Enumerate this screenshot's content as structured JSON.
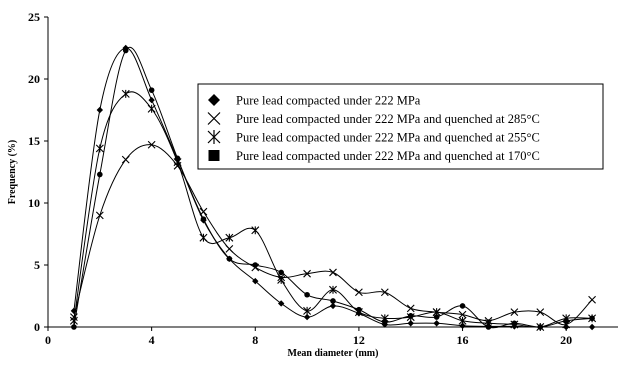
{
  "chart_data": {
    "type": "line",
    "title": "",
    "xlabel": "Mean diameter (mm)",
    "ylabel": "Frequency (%)",
    "xlim": [
      0,
      22
    ],
    "ylim": [
      0,
      25
    ],
    "xticks": [
      0,
      4,
      8,
      12,
      16,
      20
    ],
    "yticks": [
      0,
      5,
      10,
      15,
      20,
      25
    ],
    "grid": false,
    "legend_position": "right",
    "line_color": "#000000",
    "series": [
      {
        "name": "Pure lead compacted under 222 MPa",
        "marker": "diamond",
        "x": [
          1,
          2,
          3,
          4,
          5,
          6,
          7,
          8,
          9,
          10,
          11,
          12,
          13,
          14,
          15,
          16,
          17,
          18,
          19,
          20,
          21
        ],
        "y": [
          1.3,
          17.5,
          22.5,
          18.3,
          13.5,
          8.6,
          5.5,
          3.7,
          1.9,
          0.8,
          1.7,
          1.1,
          0.2,
          0.3,
          0.3,
          0.1,
          0.05,
          0.05,
          0.0,
          0.0,
          0.0
        ]
      },
      {
        "name": "Pure lead compacted under 222 MPa and quenched at 285°C",
        "marker": "x",
        "x": [
          1,
          2,
          3,
          4,
          5,
          6,
          7,
          8,
          9,
          10,
          11,
          12,
          13,
          14,
          15,
          16,
          17,
          18,
          19,
          20,
          21
        ],
        "y": [
          0.8,
          9.0,
          13.5,
          14.7,
          13.0,
          9.3,
          6.3,
          4.8,
          4.0,
          4.3,
          4.4,
          2.8,
          2.8,
          1.5,
          1.2,
          1.0,
          0.5,
          1.2,
          1.2,
          0.2,
          2.2
        ]
      },
      {
        "name": "Pure lead compacted under 222 MPa and quenched at 255°C",
        "marker": "asterisk",
        "x": [
          1,
          2,
          3,
          4,
          5,
          6,
          7,
          8,
          9,
          10,
          11,
          12,
          13,
          14,
          15,
          16,
          17,
          18,
          19,
          20,
          21
        ],
        "y": [
          0.5,
          14.4,
          18.8,
          17.6,
          13.3,
          7.2,
          7.2,
          7.8,
          3.8,
          1.3,
          3.0,
          1.2,
          0.7,
          0.8,
          1.2,
          0.5,
          0.3,
          0.2,
          0.0,
          0.7,
          0.7
        ]
      },
      {
        "name": "Pure lead compacted under 222 MPa and quenched at 170°C",
        "marker": "square",
        "x": [
          1,
          2,
          3,
          4,
          5,
          6,
          7,
          8,
          9,
          10,
          11,
          12,
          13,
          14,
          15,
          16,
          17,
          18,
          19,
          20,
          21
        ],
        "y": [
          0.0,
          12.3,
          22.3,
          19.1,
          13.6,
          8.7,
          5.5,
          5.0,
          4.4,
          2.6,
          2.1,
          1.4,
          0.4,
          0.9,
          0.8,
          1.7,
          0.0,
          0.3,
          0.0,
          0.5,
          0.7
        ]
      }
    ]
  }
}
